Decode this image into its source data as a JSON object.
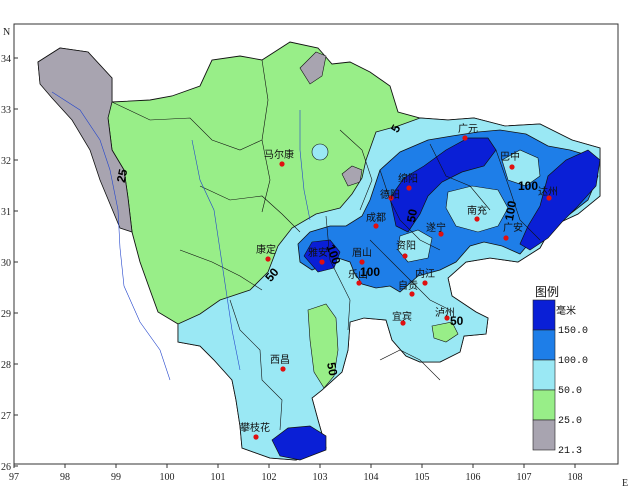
{
  "axes": {
    "north_letter": "N",
    "east_letter": "E",
    "lon_ticks": [
      "97",
      "98",
      "99",
      "100",
      "101",
      "102",
      "103",
      "104",
      "105",
      "106",
      "107",
      "108"
    ],
    "lat_ticks": [
      "34",
      "33",
      "32",
      "31",
      "30",
      "29",
      "28",
      "27",
      "26"
    ]
  },
  "cities": [
    {
      "name": "马尔康"
    },
    {
      "name": "广元"
    },
    {
      "name": "巴中"
    },
    {
      "name": "绵阳"
    },
    {
      "name": "德阳"
    },
    {
      "name": "达州"
    },
    {
      "name": "南充"
    },
    {
      "name": "成都"
    },
    {
      "name": "遂宁"
    },
    {
      "name": "广安"
    },
    {
      "name": "雅安"
    },
    {
      "name": "眉山"
    },
    {
      "name": "资阳"
    },
    {
      "name": "康定"
    },
    {
      "name": "乐山"
    },
    {
      "name": "内江"
    },
    {
      "name": "自贡"
    },
    {
      "name": "宜宾"
    },
    {
      "name": "泸州"
    },
    {
      "name": "西昌"
    },
    {
      "name": "攀枝花"
    }
  ],
  "contour_labels": [
    "25",
    "50",
    "50",
    "100",
    "100",
    "100",
    "100",
    "50",
    "50",
    "5"
  ],
  "legend": {
    "title": "图例",
    "unit": "毫米",
    "items": [
      {
        "label": "150.0",
        "color": "#0a1fd6"
      },
      {
        "label": "100.0",
        "color": "#1e7ee8"
      },
      {
        "label": "50.0",
        "color": "#9ae8f4"
      },
      {
        "label": "25.0",
        "color": "#98ee88"
      },
      {
        "label": "21.3",
        "color": "#a8a4b0"
      }
    ]
  },
  "colors": {
    "gray_zone": "#a8a4b0",
    "green_zone": "#98ee88",
    "cyan_zone": "#9ae8f4",
    "blue_zone": "#1e7ee8",
    "deep_zone": "#0a1fd6",
    "boundary": "#111111",
    "river": "#2244cc",
    "city_dot": "#e01010"
  }
}
